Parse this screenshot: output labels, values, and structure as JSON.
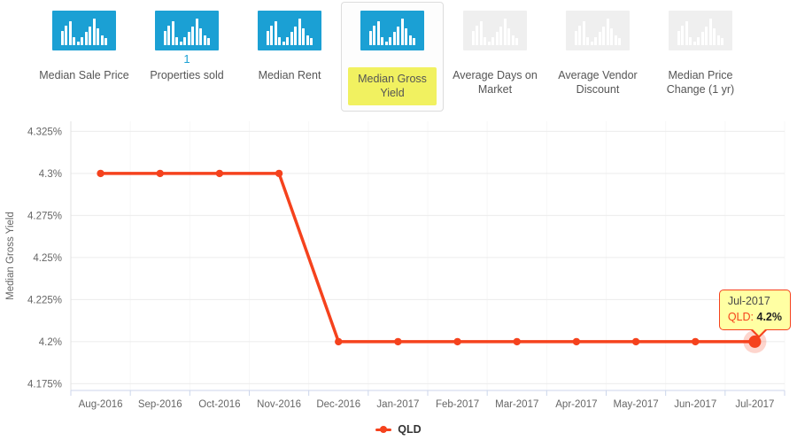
{
  "colors": {
    "accent_blue": "#1ba0d4",
    "inactive_icon_bg": "#efefef",
    "series_line": "#f5421d",
    "highlight_yellow": "#f1f160",
    "tooltip_bg": "#ffffa3",
    "axis_line": "#ccd6eb",
    "grid_line": "#ececec"
  },
  "tabs": {
    "items": [
      {
        "label": "Median Sale Price",
        "count": "",
        "icon_active": true,
        "selected": false
      },
      {
        "label": "Properties sold",
        "count": "1",
        "icon_active": true,
        "selected": false
      },
      {
        "label": "Median Rent",
        "count": "",
        "icon_active": true,
        "selected": false
      },
      {
        "label": "Median Gross Yield",
        "count": "",
        "icon_active": true,
        "selected": true
      },
      {
        "label": "Average Days on Market",
        "count": "",
        "icon_active": false,
        "selected": false
      },
      {
        "label": "Average Vendor Discount",
        "count": "",
        "icon_active": false,
        "selected": false
      },
      {
        "label": "Median Price Change (1 yr)",
        "count": "",
        "icon_active": false,
        "selected": false
      }
    ]
  },
  "chart_data": {
    "type": "line",
    "categories": [
      "Aug-2016",
      "Sep-2016",
      "Oct-2016",
      "Nov-2016",
      "Dec-2016",
      "Jan-2017",
      "Feb-2017",
      "Mar-2017",
      "Apr-2017",
      "May-2017",
      "Jun-2017",
      "Jul-2017"
    ],
    "series": [
      {
        "name": "QLD",
        "color": "#f5421d",
        "values": [
          4.3,
          4.3,
          4.3,
          4.3,
          4.2,
          4.2,
          4.2,
          4.2,
          4.2,
          4.2,
          4.2,
          4.2
        ]
      }
    ],
    "title": "",
    "xlabel": "",
    "ylabel": "Median Gross Yield",
    "ylim": [
      4.171,
      4.331
    ],
    "yticks": [
      4.175,
      4.2,
      4.225,
      4.25,
      4.275,
      4.3,
      4.325
    ],
    "ytick_labels": [
      "4.175%",
      "4.2%",
      "4.225%",
      "4.25%",
      "4.275%",
      "4.3%",
      "4.325%"
    ],
    "grid": true,
    "legend_position": "bottom"
  },
  "tooltip": {
    "date": "Jul-2017",
    "series_label": "QLD:",
    "value": "4.2%"
  },
  "legend": {
    "label": "QLD"
  }
}
